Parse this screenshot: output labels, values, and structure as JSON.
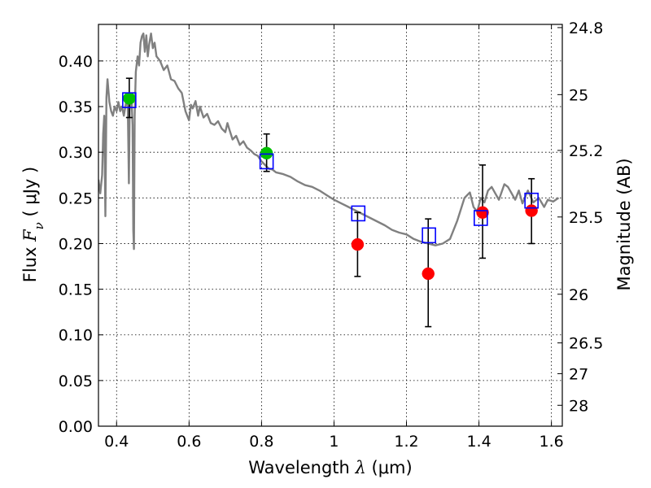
{
  "chart_data": {
    "type": "scatter",
    "xlabel": {
      "prefix": "Wavelength  ",
      "symbol": "λ",
      "suffix": " (μm)"
    },
    "ylabel": {
      "prefix": "Flux  ",
      "symbol": "F",
      "subscript": "ν",
      "suffix": "  ( μJy )"
    },
    "ylabel_right": "Magnitude (AB)",
    "xlim": [
      0.35,
      1.63
    ],
    "ylim": [
      0.0,
      0.44
    ],
    "grid": true,
    "x_ticks": [
      {
        "value": 0.4,
        "label": "0.4"
      },
      {
        "value": 0.6,
        "label": "0.6"
      },
      {
        "value": 0.8,
        "label": "0.8"
      },
      {
        "value": 1.0,
        "label": "1"
      },
      {
        "value": 1.2,
        "label": "1.2"
      },
      {
        "value": 1.4,
        "label": "1.4"
      },
      {
        "value": 1.6,
        "label": "1.6"
      }
    ],
    "y_ticks": [
      {
        "value": 0.0,
        "label": "0.00"
      },
      {
        "value": 0.05,
        "label": "0.05"
      },
      {
        "value": 0.1,
        "label": "0.10"
      },
      {
        "value": 0.15,
        "label": "0.15"
      },
      {
        "value": 0.2,
        "label": "0.20"
      },
      {
        "value": 0.25,
        "label": "0.25"
      },
      {
        "value": 0.3,
        "label": "0.30"
      },
      {
        "value": 0.35,
        "label": "0.35"
      },
      {
        "value": 0.4,
        "label": "0.40"
      }
    ],
    "right_ticks": [
      {
        "flux": 0.4365,
        "label": "24.8"
      },
      {
        "flux": 0.3631,
        "label": "25"
      },
      {
        "flux": 0.302,
        "label": "25.2"
      },
      {
        "flux": 0.2291,
        "label": "25.5"
      },
      {
        "flux": 0.1445,
        "label": "26"
      },
      {
        "flux": 0.0912,
        "label": "26.5"
      },
      {
        "flux": 0.0575,
        "label": "27"
      },
      {
        "flux": 0.0229,
        "label": "28"
      }
    ],
    "colors": {
      "model": "#808080",
      "observed_green": "#00c000",
      "observed_red": "#ff0000",
      "synthetic": "#0000ff",
      "errorbar": "#000000",
      "grid": "#000000"
    },
    "model_spectrum": [
      [
        0.35,
        0.27
      ],
      [
        0.355,
        0.255
      ],
      [
        0.36,
        0.275
      ],
      [
        0.363,
        0.32
      ],
      [
        0.366,
        0.34
      ],
      [
        0.369,
        0.23
      ],
      [
        0.372,
        0.36
      ],
      [
        0.375,
        0.38
      ],
      [
        0.38,
        0.355
      ],
      [
        0.385,
        0.345
      ],
      [
        0.39,
        0.34
      ],
      [
        0.395,
        0.35
      ],
      [
        0.4,
        0.345
      ],
      [
        0.405,
        0.355
      ],
      [
        0.41,
        0.345
      ],
      [
        0.415,
        0.35
      ],
      [
        0.42,
        0.34
      ],
      [
        0.425,
        0.352
      ],
      [
        0.428,
        0.36
      ],
      [
        0.431,
        0.348
      ],
      [
        0.434,
        0.266
      ],
      [
        0.436,
        0.345
      ],
      [
        0.438,
        0.358
      ],
      [
        0.441,
        0.362
      ],
      [
        0.444,
        0.33
      ],
      [
        0.446,
        0.215
      ],
      [
        0.448,
        0.194
      ],
      [
        0.45,
        0.34
      ],
      [
        0.453,
        0.388
      ],
      [
        0.458,
        0.405
      ],
      [
        0.462,
        0.395
      ],
      [
        0.466,
        0.42
      ],
      [
        0.47,
        0.427
      ],
      [
        0.474,
        0.43
      ],
      [
        0.478,
        0.41
      ],
      [
        0.482,
        0.428
      ],
      [
        0.486,
        0.405
      ],
      [
        0.49,
        0.418
      ],
      [
        0.495,
        0.43
      ],
      [
        0.5,
        0.414
      ],
      [
        0.505,
        0.42
      ],
      [
        0.51,
        0.405
      ],
      [
        0.52,
        0.4
      ],
      [
        0.53,
        0.39
      ],
      [
        0.54,
        0.395
      ],
      [
        0.55,
        0.38
      ],
      [
        0.56,
        0.378
      ],
      [
        0.57,
        0.37
      ],
      [
        0.58,
        0.365
      ],
      [
        0.59,
        0.345
      ],
      [
        0.6,
        0.335
      ],
      [
        0.605,
        0.352
      ],
      [
        0.61,
        0.348
      ],
      [
        0.618,
        0.356
      ],
      [
        0.625,
        0.34
      ],
      [
        0.63,
        0.35
      ],
      [
        0.64,
        0.338
      ],
      [
        0.65,
        0.342
      ],
      [
        0.66,
        0.332
      ],
      [
        0.67,
        0.33
      ],
      [
        0.68,
        0.334
      ],
      [
        0.69,
        0.326
      ],
      [
        0.7,
        0.322
      ],
      [
        0.706,
        0.332
      ],
      [
        0.712,
        0.324
      ],
      [
        0.72,
        0.314
      ],
      [
        0.73,
        0.318
      ],
      [
        0.74,
        0.308
      ],
      [
        0.75,
        0.312
      ],
      [
        0.76,
        0.305
      ],
      [
        0.77,
        0.302
      ],
      [
        0.78,
        0.298
      ],
      [
        0.79,
        0.296
      ],
      [
        0.8,
        0.29
      ],
      [
        0.81,
        0.286
      ],
      [
        0.82,
        0.282
      ],
      [
        0.83,
        0.281
      ],
      [
        0.84,
        0.278
      ],
      [
        0.86,
        0.276
      ],
      [
        0.88,
        0.273
      ],
      [
        0.9,
        0.268
      ],
      [
        0.92,
        0.264
      ],
      [
        0.94,
        0.262
      ],
      [
        0.96,
        0.258
      ],
      [
        0.98,
        0.253
      ],
      [
        1.0,
        0.248
      ],
      [
        1.02,
        0.244
      ],
      [
        1.04,
        0.24
      ],
      [
        1.06,
        0.236
      ],
      [
        1.08,
        0.232
      ],
      [
        1.1,
        0.228
      ],
      [
        1.12,
        0.224
      ],
      [
        1.14,
        0.22
      ],
      [
        1.16,
        0.215
      ],
      [
        1.18,
        0.212
      ],
      [
        1.2,
        0.21
      ],
      [
        1.22,
        0.205
      ],
      [
        1.24,
        0.202
      ],
      [
        1.26,
        0.2
      ],
      [
        1.28,
        0.198
      ],
      [
        1.3,
        0.2
      ],
      [
        1.32,
        0.205
      ],
      [
        1.34,
        0.225
      ],
      [
        1.36,
        0.25
      ],
      [
        1.375,
        0.256
      ],
      [
        1.385,
        0.24
      ],
      [
        1.395,
        0.235
      ],
      [
        1.405,
        0.25
      ],
      [
        1.415,
        0.245
      ],
      [
        1.425,
        0.258
      ],
      [
        1.435,
        0.262
      ],
      [
        1.445,
        0.255
      ],
      [
        1.455,
        0.248
      ],
      [
        1.47,
        0.265
      ],
      [
        1.48,
        0.262
      ],
      [
        1.49,
        0.255
      ],
      [
        1.5,
        0.248
      ],
      [
        1.51,
        0.258
      ],
      [
        1.52,
        0.244
      ],
      [
        1.535,
        0.258
      ],
      [
        1.55,
        0.245
      ],
      [
        1.565,
        0.25
      ],
      [
        1.58,
        0.24
      ],
      [
        1.59,
        0.248
      ],
      [
        1.605,
        0.246
      ],
      [
        1.62,
        0.25
      ]
    ],
    "observed_points": [
      {
        "x": 0.435,
        "y": 0.359,
        "yerr_low": 0.021,
        "yerr_high": 0.022,
        "color": "green"
      },
      {
        "x": 0.814,
        "y": 0.299,
        "yerr_low": 0.02,
        "yerr_high": 0.021,
        "color": "green"
      },
      {
        "x": 1.065,
        "y": 0.199,
        "yerr_low": 0.035,
        "yerr_high": 0.035,
        "color": "red"
      },
      {
        "x": 1.26,
        "y": 0.167,
        "yerr_low": 0.058,
        "yerr_high": 0.06,
        "color": "red"
      },
      {
        "x": 1.41,
        "y": 0.234,
        "yerr_low": 0.05,
        "yerr_high": 0.052,
        "color": "red"
      },
      {
        "x": 1.545,
        "y": 0.236,
        "yerr_low": 0.036,
        "yerr_high": 0.035,
        "color": "red"
      }
    ],
    "synthetic_points": [
      {
        "x": 0.435,
        "y": 0.357
      },
      {
        "x": 0.814,
        "y": 0.29
      },
      {
        "x": 1.067,
        "y": 0.233
      },
      {
        "x": 1.262,
        "y": 0.209
      },
      {
        "x": 1.405,
        "y": 0.228
      },
      {
        "x": 1.545,
        "y": 0.247
      }
    ]
  }
}
